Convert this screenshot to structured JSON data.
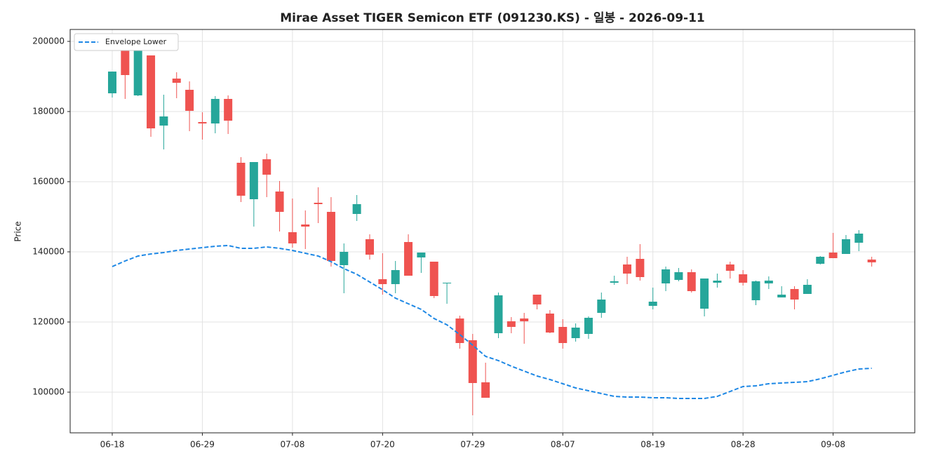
{
  "chart_data": {
    "type": "candlestick",
    "title": "Mirae Asset TIGER Semicon ETF (091230.KS) - 일봉 - 2026-09-11",
    "ylabel": "Price",
    "categories": [
      "06-18",
      null,
      null,
      null,
      null,
      null,
      null,
      "06-29",
      null,
      null,
      null,
      null,
      null,
      null,
      "07-08",
      null,
      null,
      null,
      null,
      null,
      null,
      "07-20",
      null,
      null,
      null,
      null,
      null,
      null,
      "07-29",
      null,
      null,
      null,
      null,
      null,
      null,
      "08-07",
      null,
      null,
      null,
      null,
      null,
      null,
      "08-19",
      null,
      null,
      null,
      null,
      null,
      null,
      "08-28",
      null,
      null,
      null,
      null,
      null,
      null,
      "09-08",
      null,
      null,
      null
    ],
    "ylim": [
      88400,
      203400
    ],
    "yticks": [
      100000,
      120000,
      140000,
      160000,
      180000,
      200000
    ],
    "grid": true,
    "legend": "upper left",
    "up_color": "#26a69a",
    "down_color": "#ef5350",
    "open": [
      185200,
      197400,
      184600,
      196000,
      176000,
      189400,
      186200,
      177000,
      176600,
      183600,
      165400,
      155000,
      166400,
      157200,
      145600,
      147800,
      154000,
      151400,
      136200,
      150800,
      143600,
      132200,
      130800,
      142800,
      138400,
      137200,
      131000,
      121000,
      114800,
      102800,
      116800,
      120200,
      121000,
      127800,
      122400,
      118600,
      115400,
      116600,
      122600,
      131200,
      136400,
      138000,
      124600,
      131000,
      132000,
      134200,
      123800,
      131200,
      136400,
      133600,
      126200,
      131000,
      127000,
      129400,
      128000,
      136600,
      139800,
      139400,
      142600,
      137800
    ],
    "high": [
      191400,
      199000,
      198000,
      196000,
      184800,
      191200,
      188600,
      179800,
      184400,
      184600,
      167000,
      165600,
      168000,
      160200,
      155200,
      151800,
      158400,
      155600,
      142400,
      156200,
      145000,
      139600,
      137400,
      145000,
      139800,
      137200,
      131200,
      121800,
      116600,
      108400,
      128400,
      121400,
      122600,
      127800,
      123400,
      120800,
      119600,
      121600,
      128400,
      133200,
      138600,
      142200,
      129800,
      135800,
      135400,
      135000,
      132400,
      133800,
      137200,
      134800,
      131800,
      133000,
      130200,
      130200,
      132200,
      138800,
      145400,
      144800,
      146200,
      138600
    ],
    "low": [
      184000,
      183600,
      184400,
      172800,
      169200,
      183800,
      174400,
      172000,
      173800,
      173600,
      154200,
      147200,
      155600,
      145800,
      141200,
      140800,
      148200,
      135800,
      128200,
      148800,
      137800,
      127800,
      128200,
      133200,
      134000,
      126800,
      125200,
      112400,
      93400,
      98400,
      115400,
      116800,
      113800,
      123600,
      116800,
      112400,
      114400,
      115200,
      121200,
      130600,
      130800,
      131800,
      123600,
      128800,
      131600,
      128400,
      121600,
      129800,
      132400,
      130400,
      124800,
      129400,
      127000,
      123600,
      128000,
      136400,
      138200,
      139400,
      140200,
      135800
    ],
    "close": [
      191400,
      190400,
      197400,
      175200,
      178600,
      188200,
      180200,
      176600,
      183600,
      177400,
      156000,
      165600,
      162000,
      151400,
      142400,
      147200,
      153600,
      137400,
      140000,
      153600,
      139200,
      130800,
      134800,
      133200,
      139800,
      127400,
      131200,
      114000,
      102600,
      98400,
      127600,
      118600,
      120200,
      125000,
      117000,
      114000,
      118400,
      121200,
      126400,
      131600,
      133800,
      132800,
      125800,
      135000,
      134200,
      128800,
      132400,
      131800,
      134600,
      131200,
      131600,
      131800,
      127800,
      126400,
      130600,
      138600,
      138200,
      143600,
      145200,
      137000
    ],
    "series": [
      {
        "name": "Envelope Lower",
        "color": "#1e88e5",
        "dash": true,
        "values": [
          135800,
          137400,
          138800,
          139400,
          139800,
          140400,
          140800,
          141200,
          141600,
          141800,
          141000,
          141000,
          141400,
          141000,
          140400,
          139600,
          138800,
          137200,
          135200,
          133600,
          131400,
          129200,
          126800,
          125200,
          123600,
          121000,
          119200,
          116400,
          113400,
          110200,
          109000,
          107400,
          106000,
          104600,
          103600,
          102400,
          101200,
          100400,
          99600,
          98800,
          98600,
          98600,
          98400,
          98400,
          98200,
          98200,
          98200,
          98800,
          100200,
          101600,
          101800,
          102400,
          102600,
          102800,
          103000,
          103800,
          104800,
          105800,
          106600,
          106800
        ]
      }
    ]
  }
}
